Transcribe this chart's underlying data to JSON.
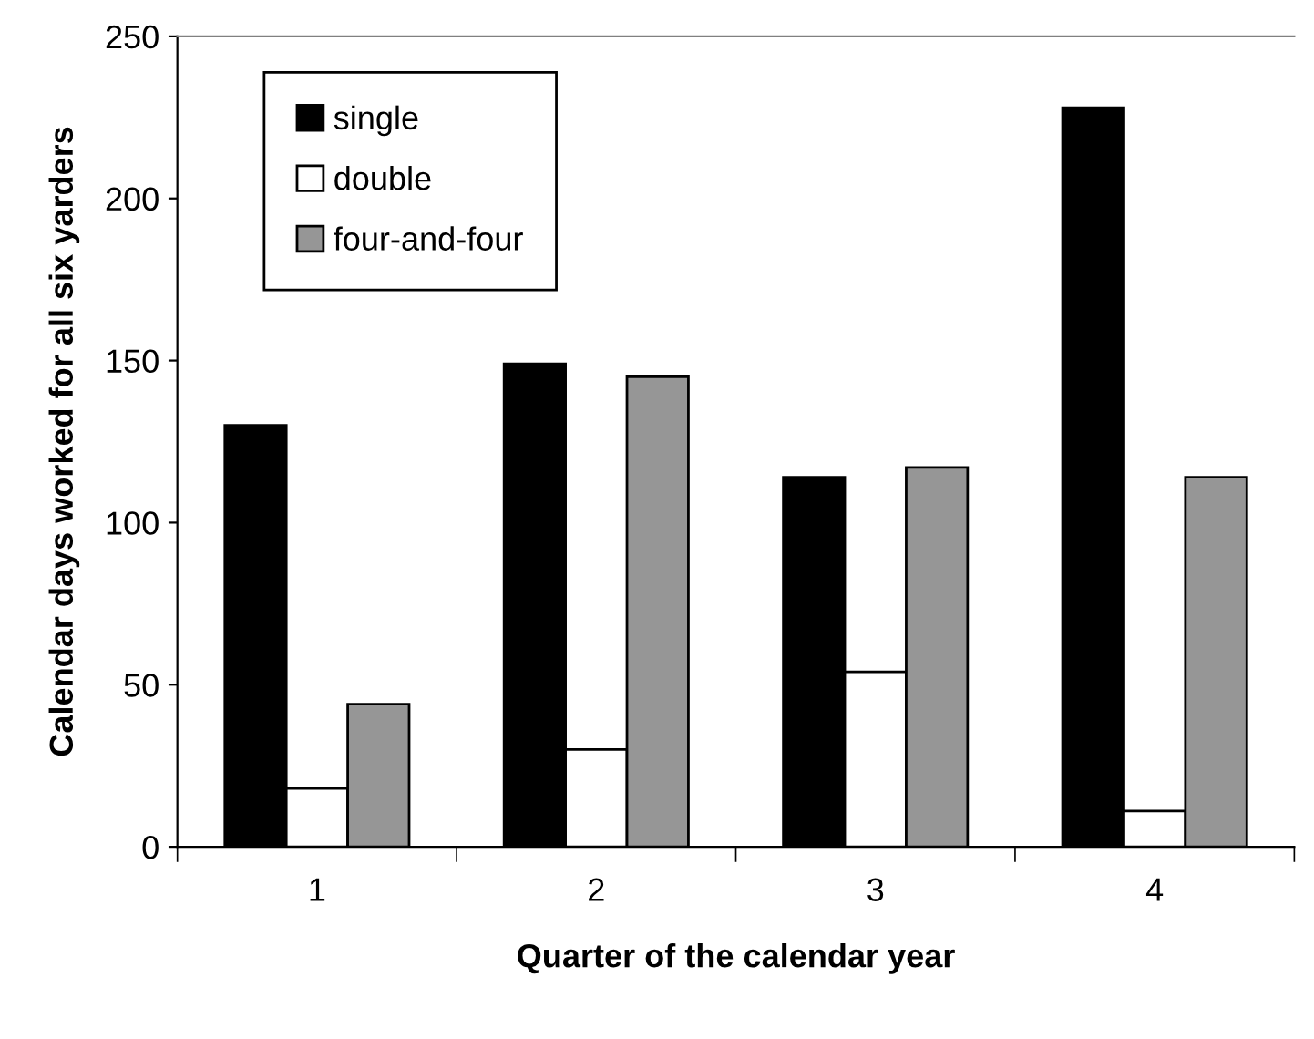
{
  "chart_data": {
    "type": "bar",
    "xlabel": "Quarter of the calendar year",
    "ylabel": "Calendar days worked for all six yarders",
    "categories": [
      "1",
      "2",
      "3",
      "4"
    ],
    "series": [
      {
        "name": "single",
        "color": "#000000",
        "values": [
          130,
          149,
          114,
          228
        ]
      },
      {
        "name": "double",
        "color": "#ffffff",
        "values": [
          18,
          30,
          54,
          11
        ]
      },
      {
        "name": "four-and-four",
        "color": "#969696",
        "values": [
          44,
          145,
          117,
          114
        ]
      }
    ],
    "ylim": [
      0,
      250
    ],
    "yticks": [
      0,
      50,
      100,
      150,
      200,
      250
    ],
    "grid": false,
    "legend": "top left"
  }
}
